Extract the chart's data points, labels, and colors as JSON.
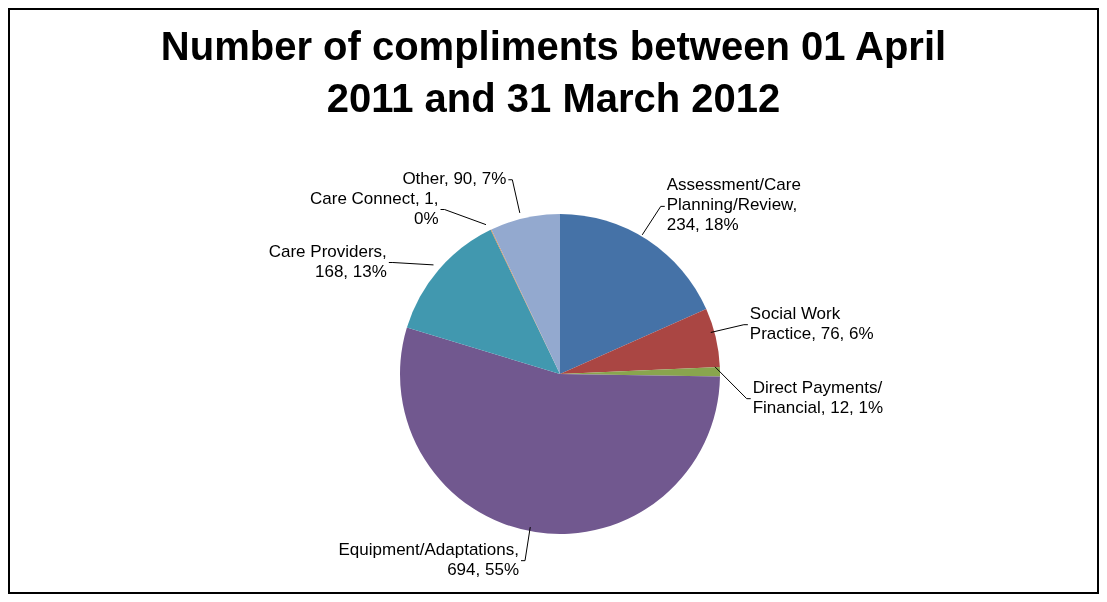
{
  "chart_data": {
    "type": "pie",
    "title": "Number of compliments between 01 April 2011 and 31 March 2012",
    "categories": [
      "Assessment/Care Planning/Review",
      "Social Work Practice",
      "Direct Payments/ Financial",
      "Equipment/Adaptations",
      "Care Providers",
      "Care Connect",
      "Other"
    ],
    "values": [
      234,
      76,
      12,
      694,
      168,
      1,
      90
    ],
    "value_labels": [
      ", 234, 18%",
      ", 76, 6%",
      ", 12, 1%",
      ", 694, 55%",
      ", 168, 13%",
      ", 1, 0%",
      ", 90, 7%"
    ],
    "colors": [
      "#4572a7",
      "#aa4643",
      "#89a54e",
      "#71588f",
      "#4198af",
      "#db843d",
      "#93a9cf"
    ]
  }
}
